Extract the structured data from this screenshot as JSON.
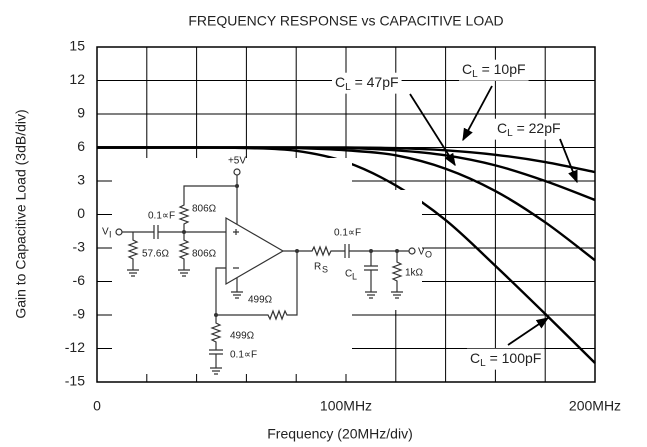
{
  "chart_data": {
    "type": "line",
    "title": "FREQUENCY RESPONSE vs CAPACITIVE LOAD",
    "x_label": "Frequency (20MHz/div)",
    "y_label": "Gain to Capacitive Load (3dB/div)",
    "x": [
      0,
      20,
      40,
      60,
      80,
      100,
      120,
      140,
      160,
      180,
      200
    ],
    "series": [
      {
        "name": "CL = 10pF",
        "color": "#000000",
        "values": [
          6,
          6,
          6,
          6,
          6,
          6,
          5.95,
          5.75,
          5.35,
          4.7,
          3.8
        ]
      },
      {
        "name": "CL = 22pF",
        "color": "#000000",
        "values": [
          6,
          6,
          6,
          6,
          6,
          5.95,
          5.75,
          5.3,
          4.4,
          3.0,
          1.3
        ]
      },
      {
        "name": "CL = 47pF",
        "color": "#000000",
        "values": [
          6,
          6,
          6,
          6,
          5.95,
          5.75,
          5.3,
          4.1,
          2.1,
          -0.7,
          -4.1
        ]
      },
      {
        "name": "CL = 100pF",
        "color": "#000000",
        "values": [
          6,
          6,
          6,
          5.95,
          5.7,
          4.7,
          2.6,
          -0.5,
          -4.6,
          -8.9,
          -13.3
        ]
      }
    ],
    "xlim": [
      0,
      200
    ],
    "xticks": [
      0,
      {
        "value": 100,
        "label": "100MHz"
      },
      {
        "value": 200,
        "label": "200MHz"
      }
    ],
    "x_minor_ticks": [
      20,
      40,
      60,
      80,
      120,
      140,
      160,
      180
    ],
    "ylim": [
      -15,
      15
    ],
    "yticks": [
      15,
      12,
      9,
      6,
      3,
      0,
      -3,
      -6,
      -9,
      -12,
      -15
    ],
    "grid": true
  },
  "schematic": {
    "labels": [
      "+5V",
      "0.1∝F",
      "806Ω",
      "V",
      "I",
      "57.6Ω",
      "806Ω",
      "499Ω",
      "499Ω",
      "0.1∝F",
      "R",
      "S",
      "0.1∝F",
      "C",
      "L",
      "1kΩ",
      "V",
      "O"
    ]
  }
}
